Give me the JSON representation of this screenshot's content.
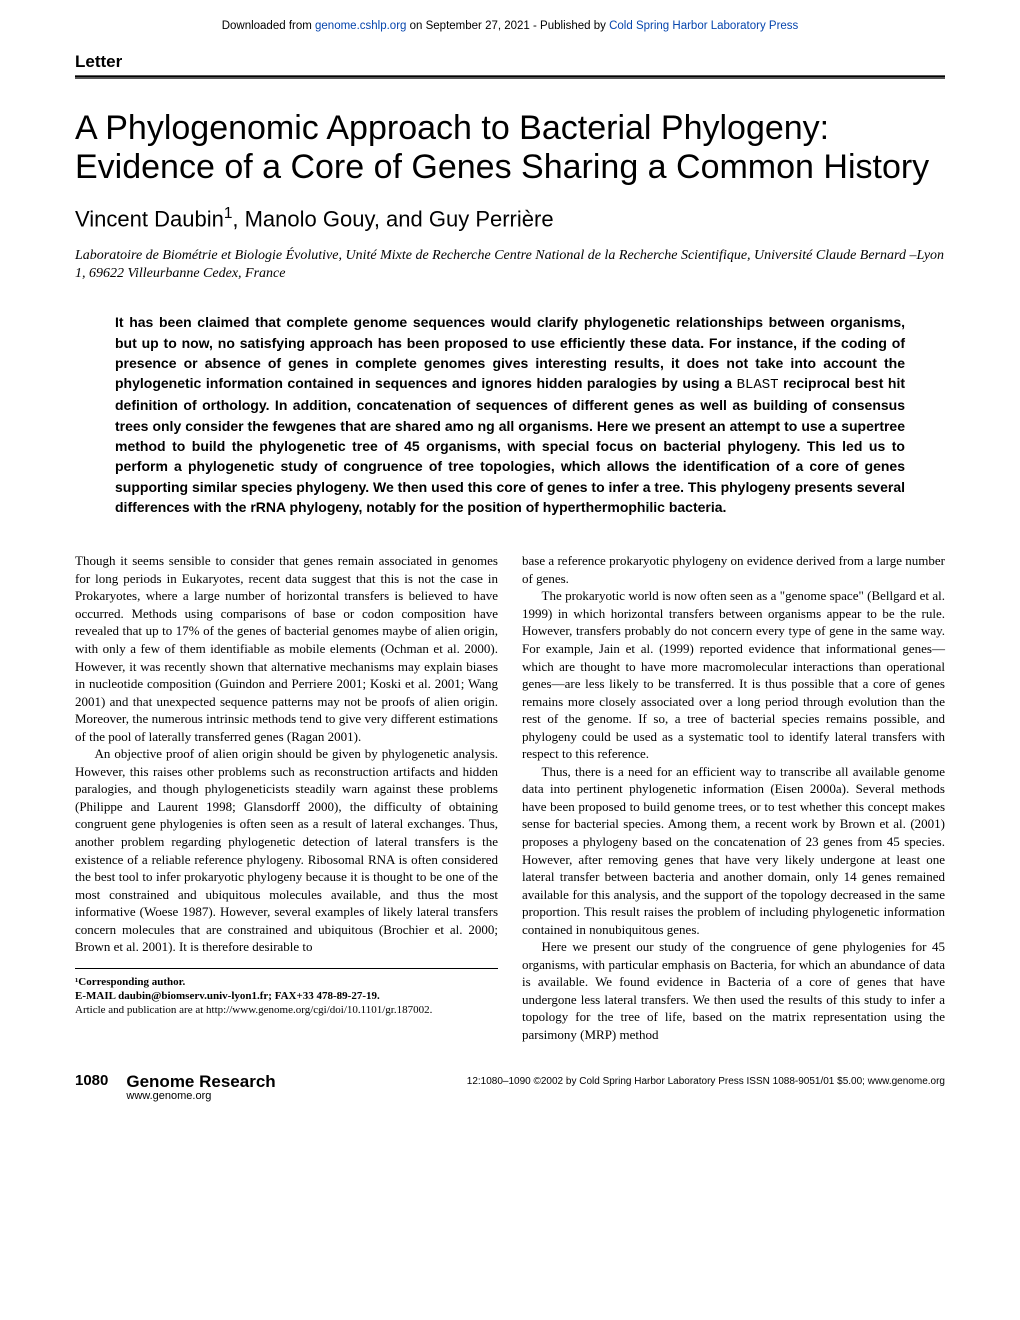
{
  "colors": {
    "text": "#000000",
    "link": "#0645ad",
    "background": "#ffffff",
    "rule": "#555555"
  },
  "download_header": {
    "prefix": "Downloaded from ",
    "link1_text": "genome.cshlp.org",
    "middle": " on September 27, 2021 - Published by ",
    "link2_text": "Cold Spring Harbor Laboratory Press"
  },
  "letter_label": "Letter",
  "title": "A Phylogenomic Approach to Bacterial Phylogeny: Evidence of a Core of Genes Sharing a Common History",
  "authors": "Vincent Daubin¹, Manolo Gouy, and Guy Perrière",
  "affiliation": "Laboratoire de Biométrie et Biologie Évolutive, Unité Mixte de Recherche Centre National de la Recherche Scientifique, Université Claude Bernard –Lyon 1, 69622 Villeurbanne Cedex, France",
  "abstract": {
    "pre_code": "It has been claimed that complete genome sequences would clarify phylogenetic relationships between organisms, but up to now, no satisfying approach has been proposed to use efficiently these data. For instance, if the coding of presence or absence of genes in complete genomes gives interesting results, it does not take into account the phylogenetic information contained in sequences and ignores hidden paralogies by using a ",
    "code": "BLAST",
    "post_code": " reciprocal best hit definition of orthology. In addition, concatenation of sequences of different genes as well as building of consensus trees only consider the fewgenes that are shared amo ng all organisms. Here we present an attempt to use a supertree method to build the phylogenetic tree of 45 organisms, with special focus on bacterial phylogeny. This led us to perform a phylogenetic study of congruence of tree topologies, which allows the identification of a core of genes supporting similar species phylogeny. We then used this core of genes to infer a tree. This phylogeny presents several differences with the rRNA phylogeny, notably for the position of hyperthermophilic bacteria."
  },
  "body": {
    "p1": "Though it seems sensible to consider that genes remain associated in genomes for long periods in Eukaryotes, recent data suggest that this is not the case in Prokaryotes, where a large number of horizontal transfers is believed to have occurred. Methods using comparisons of base or codon composition have revealed that up to 17% of the genes of bacterial genomes maybe of alien origin, with only a few of them identifiable as mobile elements (Ochman et al. 2000). However, it was recently shown that alternative mechanisms may explain biases in nucleotide composition (Guindon and Perriere 2001; Koski et al. 2001; Wang 2001) and that unexpected sequence patterns may not be proofs of alien origin. Moreover, the numerous intrinsic methods tend to give very different estimations of the pool of laterally transferred genes (Ragan 2001).",
    "p2": "An objective proof of alien origin should be given by phylogenetic analysis. However, this raises other problems such as reconstruction artifacts and hidden paralogies, and though phylogeneticists steadily warn against these problems (Philippe and Laurent 1998; Glansdorff 2000), the difficulty of obtaining congruent gene phylogenies is often seen as a result of lateral exchanges. Thus, another problem regarding phylogenetic detection of lateral transfers is the existence of a reliable reference phylogeny. Ribosomal RNA is often considered the best tool to infer prokaryotic phylogeny because it is thought to be one of the most constrained and ubiquitous molecules available, and thus the most informative (Woese 1987). However, several examples of likely lateral transfers concern molecules that are constrained and ubiquitous (Brochier et al. 2000; Brown et al. 2001). It is therefore desirable to",
    "p3": "base a reference prokaryotic phylogeny on evidence derived from a large number of genes.",
    "p4": "The prokaryotic world is now often seen as a \"genome space\" (Bellgard et al. 1999) in which horizontal transfers between organisms appear to be the rule. However, transfers probably do not concern every type of gene in the same way. For example, Jain et al. (1999) reported evidence that informational genes—which are thought to have more macromolecular interactions than operational genes—are less likely to be transferred. It is thus possible that a core of genes remains more closely associated over a long period through evolution than the rest of the genome. If so, a tree of bacterial species remains possible, and phylogeny could be used as a systematic tool to identify lateral transfers with respect to this reference.",
    "p5": "Thus, there is a need for an efficient way to transcribe all available genome data into pertinent phylogenetic information (Eisen 2000a). Several methods have been proposed to build genome trees, or to test whether this concept makes sense for bacterial species. Among them, a recent work by Brown et al. (2001) proposes a phylogeny based on the concatenation of 23 genes from 45 species. However, after removing genes that have very likely undergone at least one lateral transfer between bacteria and another domain, only 14 genes remained available for this analysis, and the support of the topology decreased in the same proportion. This result raises the problem of including phylogenetic information contained in nonubiquitous genes.",
    "p6": "Here we present our study of the congruence of gene phylogenies for 45 organisms, with particular emphasis on Bacteria, for which an abundance of data is available. We found evidence in Bacteria of a core of genes that have undergone less lateral transfers. We then used the results of this study to infer a topology for the tree of life, based on the matrix representation using the parsimony (MRP) method"
  },
  "corresponding": {
    "label": "¹Corresponding author.",
    "email": "E-MAIL daubin@biomserv.univ-lyon1.fr; FAX+33 478-89-27-19.",
    "article_info": "Article and publication are at http://www.genome.org/cgi/doi/10.1101/gr.187002."
  },
  "footer": {
    "page_number": "1080",
    "journal": "Genome Research",
    "url": "www.genome.org",
    "copyright": "12:1080–1090 ©2002 by Cold Spring Harbor Laboratory Press ISSN 1088-9051/01 $5.00; www.genome.org"
  }
}
